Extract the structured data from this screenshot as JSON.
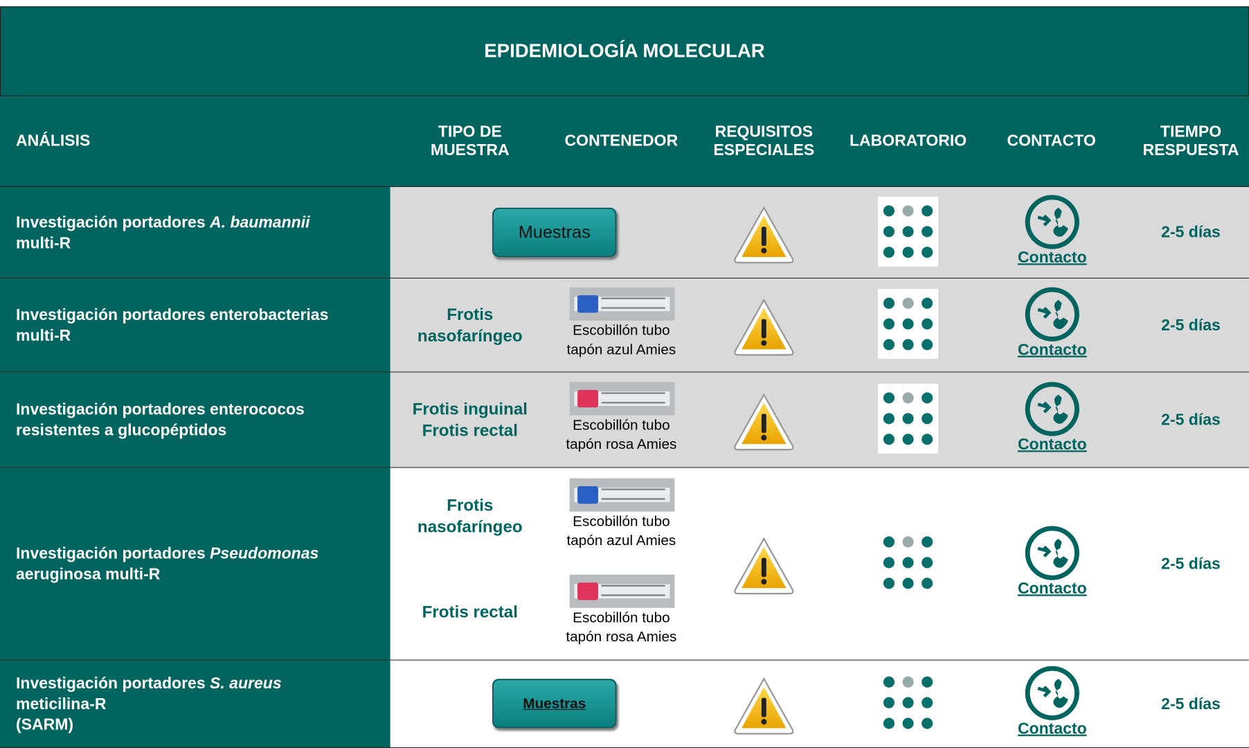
{
  "header": {
    "title": "EPIDEMIOLOGÍA MOLECULAR"
  },
  "table": {
    "headers": [
      "ANÁLISIS",
      "TIPO DE MUESTRA",
      "CONTENEDOR",
      "REQUISITOS ESPECIALES",
      "LABORATORIO",
      "CONTACTO",
      "TIEMPO RESPUESTA"
    ],
    "rows": [
      {
        "analysis": [
          [
            "Investigación portadores ",
            {
              "text": "A. baumannii",
              "italic": true
            }
          ],
          [
            "multi-R"
          ]
        ],
        "button": "Muestras",
        "contact": "Contacto",
        "time": "2-5 días"
      },
      {
        "analysis": [
          [
            "Investigación portadores enterobacterias"
          ],
          [
            "multi-R"
          ]
        ],
        "samples": [
          {
            "sample": [
              "Frotis nasofaríngeo"
            ],
            "container": "Escobillón tubo tapón azul Amies",
            "cap": "#2a5fc4"
          }
        ],
        "contact": "Contacto",
        "time": "2-5 días"
      },
      {
        "analysis": [
          [
            "Investigación portadores enterococos"
          ],
          [
            "resistentes a glucopéptidos"
          ]
        ],
        "samples": [
          {
            "sample": [
              "Frotis inguinal",
              "Frotis rectal"
            ],
            "container": "Escobillón tubo tapón rosa Amies",
            "cap": "#e0335a"
          }
        ],
        "contact": "Contacto",
        "time": "2-5 días"
      },
      {
        "analysis": [
          [
            "Investigación portadores ",
            {
              "text": "Pseudomonas",
              "italic": true
            }
          ],
          [
            "aeruginosa multi-R"
          ]
        ],
        "samples": [
          {
            "sample": [
              "Frotis nasofaríngeo"
            ],
            "container": "Escobillón tubo tapón azul Amies",
            "cap": "#2a5fc4"
          },
          {
            "sample": [
              "Frotis rectal"
            ],
            "container": "Escobillón tubo tapón rosa Amies",
            "cap": "#e0335a"
          }
        ],
        "contact": "Contacto",
        "time": "2-5 días"
      },
      {
        "analysis": [
          [
            "Investigación portadores ",
            {
              "text": "S. aureus",
              "italic": true
            }
          ],
          [
            "meticilina-R"
          ],
          [
            "(SARM)"
          ]
        ],
        "button": "Muestras",
        "button_underlined": true,
        "contact": "Contacto",
        "time": "2-5 días"
      }
    ]
  }
}
